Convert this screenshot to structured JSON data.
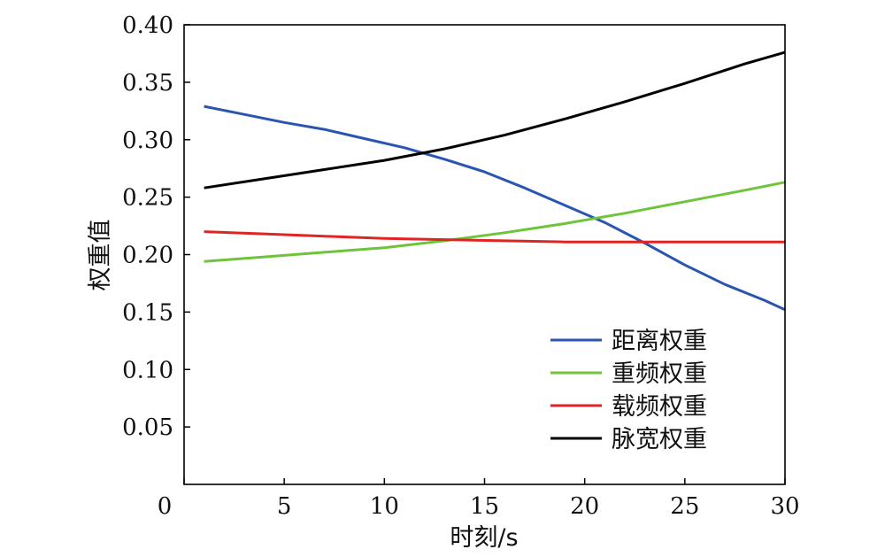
{
  "chart_data": {
    "type": "line",
    "xlabel": "时刻/s",
    "ylabel": "权重值",
    "xlim": [
      0,
      30
    ],
    "ylim": [
      0,
      0.4
    ],
    "xticks": [
      "0",
      "5",
      "10",
      "15",
      "20",
      "25",
      "30"
    ],
    "yticks": [
      "0.05",
      "0.10",
      "0.15",
      "0.20",
      "0.25",
      "0.30",
      "0.35",
      "0.40"
    ],
    "grid": false,
    "legend_position": "bottom-right",
    "series": [
      {
        "name": "距离权重",
        "color": "#2a55b0",
        "x": [
          1,
          3,
          5,
          7,
          9,
          11,
          13,
          15,
          17,
          19,
          21,
          23,
          25,
          27,
          29,
          30
        ],
        "y": [
          0.329,
          0.322,
          0.315,
          0.309,
          0.301,
          0.293,
          0.283,
          0.272,
          0.258,
          0.243,
          0.228,
          0.21,
          0.191,
          0.174,
          0.16,
          0.152
        ]
      },
      {
        "name": "重频权重",
        "color": "#6ec43a",
        "x": [
          1,
          4,
          7,
          10,
          13,
          16,
          19,
          22,
          25,
          28,
          30
        ],
        "y": [
          0.194,
          0.198,
          0.202,
          0.206,
          0.212,
          0.219,
          0.227,
          0.236,
          0.246,
          0.256,
          0.263
        ]
      },
      {
        "name": "载频权重",
        "color": "#e02424",
        "x": [
          1,
          4,
          7,
          10,
          13,
          16,
          19,
          22,
          25,
          28,
          30
        ],
        "y": [
          0.22,
          0.218,
          0.216,
          0.214,
          0.213,
          0.212,
          0.211,
          0.211,
          0.211,
          0.211,
          0.211
        ]
      },
      {
        "name": "脉宽权重",
        "color": "#000000",
        "x": [
          1,
          4,
          7,
          10,
          13,
          16,
          19,
          22,
          25,
          28,
          30
        ],
        "y": [
          0.258,
          0.266,
          0.274,
          0.282,
          0.292,
          0.304,
          0.318,
          0.333,
          0.349,
          0.366,
          0.376
        ]
      }
    ]
  }
}
